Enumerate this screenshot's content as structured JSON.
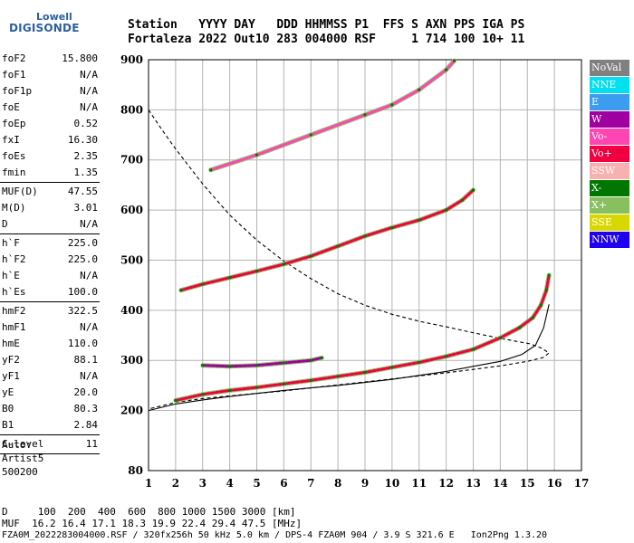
{
  "logo": {
    "line1": "Lowell",
    "line2": "DIGISONDE"
  },
  "header": {
    "line1": "Station   YYYY DAY   DDD HHMMSS P1  FFS S AXN PPS IGA PS",
    "line2": "Fortaleza 2022 Out10 283 004000 RSF     1 714 100 10+ 11"
  },
  "params": [
    {
      "name": "foF2",
      "value": "15.800"
    },
    {
      "name": "foF1",
      "value": "N/A"
    },
    {
      "name": "foF1p",
      "value": "N/A"
    },
    {
      "name": "foE",
      "value": "N/A"
    },
    {
      "name": "foEp",
      "value": "0.52"
    },
    {
      "name": "fxI",
      "value": "16.30"
    },
    {
      "name": "foEs",
      "value": "2.35"
    },
    {
      "name": "fmin",
      "value": "1.35"
    },
    {
      "sep": true
    },
    {
      "name": "MUF(D)",
      "value": "47.55"
    },
    {
      "name": "M(D)",
      "value": "3.01"
    },
    {
      "name": "D",
      "value": "N/A"
    },
    {
      "sep": true
    },
    {
      "name": "h`F",
      "value": "225.0"
    },
    {
      "name": "h`F2",
      "value": "225.0"
    },
    {
      "name": "h`E",
      "value": "N/A"
    },
    {
      "name": "h`Es",
      "value": "100.0"
    },
    {
      "sep": true
    },
    {
      "name": "hmF2",
      "value": "322.5"
    },
    {
      "name": "hmF1",
      "value": "N/A"
    },
    {
      "name": "hmE",
      "value": "110.0"
    },
    {
      "name": "yF2",
      "value": "88.1"
    },
    {
      "name": "yF1",
      "value": "N/A"
    },
    {
      "name": "yE",
      "value": "20.0"
    },
    {
      "name": "B0",
      "value": "80.3"
    },
    {
      "name": "B1",
      "value": "2.84"
    },
    {
      "sep": true
    },
    {
      "name": "C-level",
      "value": "11"
    },
    {
      "sep": true
    }
  ],
  "autoscaling": {
    "line1": "Auto:",
    "line2": "Artist5",
    "line3": "500200"
  },
  "legend": [
    {
      "label": "NoVal",
      "color": "#808080"
    },
    {
      "label": "NNE",
      "color": "#00e0f0"
    },
    {
      "label": "E",
      "color": "#3c9cf0"
    },
    {
      "label": "W",
      "color": "#a000a0"
    },
    {
      "label": "Vo-",
      "color": "#ff44b4"
    },
    {
      "label": "Vo+",
      "color": "#f00040"
    },
    {
      "label": "SSW",
      "color": "#f8b0b0"
    },
    {
      "label": "X-",
      "color": "#007800"
    },
    {
      "label": "X+",
      "color": "#88c060"
    },
    {
      "label": "SSE",
      "color": "#d8d800"
    },
    {
      "label": "NNW",
      "color": "#2000f0"
    }
  ],
  "footer": {
    "line1": "D     100  200  400  600  800 1000 1500 3000 [km]",
    "line2": "MUF  16.2 16.4 17.1 18.3 19.9 22.4 29.4 47.5 [MHz]",
    "line3": "FZA0M_2022283004000.RSF / 320fx256h 50 kHz 5.0 km / DPS-4 FZA0M 904 / 3.9 S 321.6 E   Ion2Png 1.3.20"
  },
  "chart_data": {
    "type": "scatter",
    "xlim": [
      1,
      17
    ],
    "ylim": [
      80,
      900
    ],
    "xticks": [
      1,
      2,
      3,
      4,
      5,
      6,
      7,
      8,
      9,
      10,
      11,
      12,
      13,
      14,
      15,
      16,
      17
    ],
    "yticks": [
      80,
      200,
      300,
      400,
      500,
      600,
      700,
      800,
      900
    ],
    "grid": true,
    "xlabel": "",
    "ylabel": "",
    "traces": [
      {
        "name": "F2 first hop",
        "color": "#f00040",
        "x": [
          2.0,
          3.0,
          4.0,
          5.0,
          6.0,
          7.0,
          8.0,
          9.0,
          10.0,
          11.0,
          12.0,
          13.0,
          14.0,
          14.7,
          15.2,
          15.5,
          15.7,
          15.8
        ],
        "y": [
          220,
          232,
          240,
          246,
          253,
          260,
          268,
          276,
          286,
          296,
          308,
          322,
          345,
          365,
          385,
          410,
          440,
          470
        ]
      },
      {
        "name": "F2 second hop",
        "color": "#f00040",
        "x": [
          2.2,
          3.0,
          4.0,
          5.0,
          6.0,
          7.0,
          8.0,
          9.0,
          10.0,
          11.0,
          12.0,
          12.6,
          13.0
        ],
        "y": [
          440,
          452,
          465,
          478,
          492,
          508,
          528,
          548,
          565,
          580,
          600,
          620,
          640
        ]
      },
      {
        "name": "F2 third hop",
        "color": "#ff44b4",
        "x": [
          3.3,
          5.0,
          7.0,
          9.0,
          10.0,
          11.0,
          12.0,
          12.3
        ],
        "y": [
          680,
          710,
          750,
          790,
          810,
          840,
          880,
          898
        ]
      },
      {
        "name": "Es",
        "color": "#a000a0",
        "x": [
          3.0,
          4.0,
          5.0,
          6.0,
          7.0,
          7.4
        ],
        "y": [
          290,
          288,
          290,
          295,
          300,
          305
        ]
      }
    ],
    "curves": [
      {
        "name": "profile",
        "style": "solid",
        "x": [
          1.0,
          2.0,
          3.0,
          4.0,
          5.0,
          6.0,
          7.0,
          8.0,
          9.0,
          10.0,
          11.0,
          12.0,
          13.0,
          14.0,
          14.8,
          15.3,
          15.6,
          15.8
        ],
        "y": [
          200,
          213,
          221,
          228,
          234,
          240,
          245,
          250,
          256,
          262,
          270,
          278,
          288,
          298,
          312,
          330,
          365,
          412
        ]
      },
      {
        "name": "MUF curve",
        "style": "dashed",
        "x": [
          1.0,
          1.5,
          2.0,
          3.0,
          4.0,
          5.0,
          6.0,
          7.0,
          8.0,
          9.0,
          10.0,
          11.0,
          12.0,
          13.0,
          14.0,
          14.6,
          15.1,
          15.5,
          15.8,
          15.6,
          15.0,
          14.0,
          13.0,
          12.0,
          11.0,
          10.0,
          9.0,
          8.0,
          7.0,
          6.0,
          5.0,
          4.0,
          3.0,
          2.0,
          1.0
        ],
        "y": [
          800,
          760,
          722,
          652,
          590,
          540,
          498,
          463,
          433,
          410,
          392,
          378,
          367,
          355,
          344,
          338,
          333,
          325,
          315,
          306,
          298,
          289,
          282,
          275,
          269,
          263,
          257,
          251,
          245,
          239,
          234,
          229,
          224,
          216,
          203
        ]
      }
    ]
  }
}
